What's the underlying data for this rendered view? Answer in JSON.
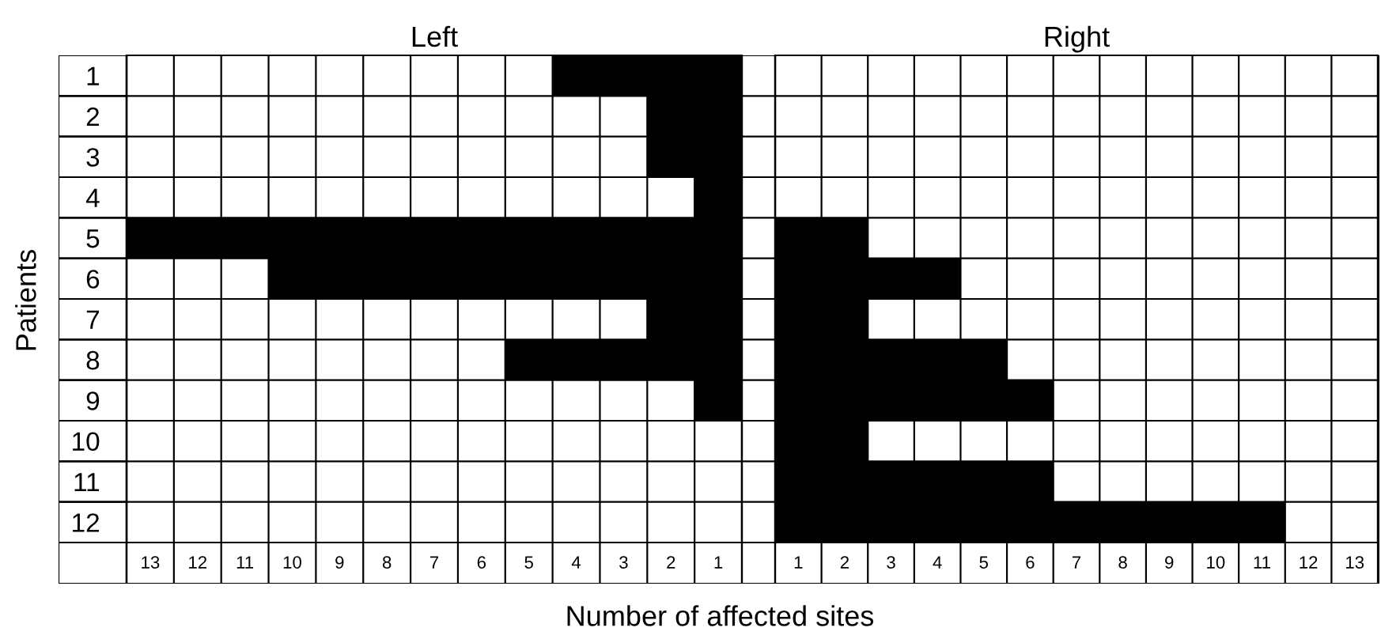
{
  "chart_data": [
    {
      "type": "bar",
      "orientation": "horizontal",
      "title": "Left",
      "ylabel": "Patients",
      "xlabel": "Number of affected sites",
      "categories": [
        "1",
        "2",
        "3",
        "4",
        "5",
        "6",
        "7",
        "8",
        "9",
        "10",
        "11",
        "12"
      ],
      "values": [
        4,
        2,
        2,
        1,
        13,
        10,
        2,
        5,
        1,
        0,
        0,
        0
      ],
      "color": "#000000",
      "xlim": [
        13,
        0
      ],
      "xticks": [
        {
          "value": 12.5,
          "label": "13"
        },
        {
          "value": 11.5,
          "label": "12"
        },
        {
          "value": 10.5,
          "label": "11"
        },
        {
          "value": 9.5,
          "label": "10"
        },
        {
          "value": 8.5,
          "label": "9"
        },
        {
          "value": 7.5,
          "label": "8"
        },
        {
          "value": 6.5,
          "label": "7"
        },
        {
          "value": 5.5,
          "label": "6"
        },
        {
          "value": 4.5,
          "label": "5"
        },
        {
          "value": 3.5,
          "label": "4"
        },
        {
          "value": 2.5,
          "label": "3"
        },
        {
          "value": 1.5,
          "label": "2"
        },
        {
          "value": 0.5,
          "label": "1"
        }
      ],
      "grid": true
    },
    {
      "type": "bar",
      "orientation": "horizontal",
      "title": "Right",
      "categories": [
        "1",
        "2",
        "3",
        "4",
        "5",
        "6",
        "7",
        "8",
        "9",
        "10",
        "11",
        "12"
      ],
      "values": [
        0,
        0,
        0,
        0,
        2,
        4,
        2,
        5,
        6,
        2,
        6,
        11
      ],
      "color": "#000000",
      "xlim": [
        0,
        13
      ],
      "xticks": [
        {
          "value": 0.5,
          "label": "1"
        },
        {
          "value": 1.5,
          "label": "2"
        },
        {
          "value": 2.5,
          "label": "3"
        },
        {
          "value": 3.5,
          "label": "4"
        },
        {
          "value": 4.5,
          "label": "5"
        },
        {
          "value": 5.5,
          "label": "6"
        },
        {
          "value": 6.5,
          "label": "7"
        },
        {
          "value": 7.5,
          "label": "8"
        },
        {
          "value": 8.5,
          "label": "9"
        },
        {
          "value": 9.5,
          "label": "10"
        },
        {
          "value": 10.5,
          "label": "11"
        },
        {
          "value": 11.5,
          "label": "12"
        },
        {
          "value": 12.5,
          "label": "13"
        }
      ],
      "grid": true,
      "tick_labels": "x"
    }
  ]
}
